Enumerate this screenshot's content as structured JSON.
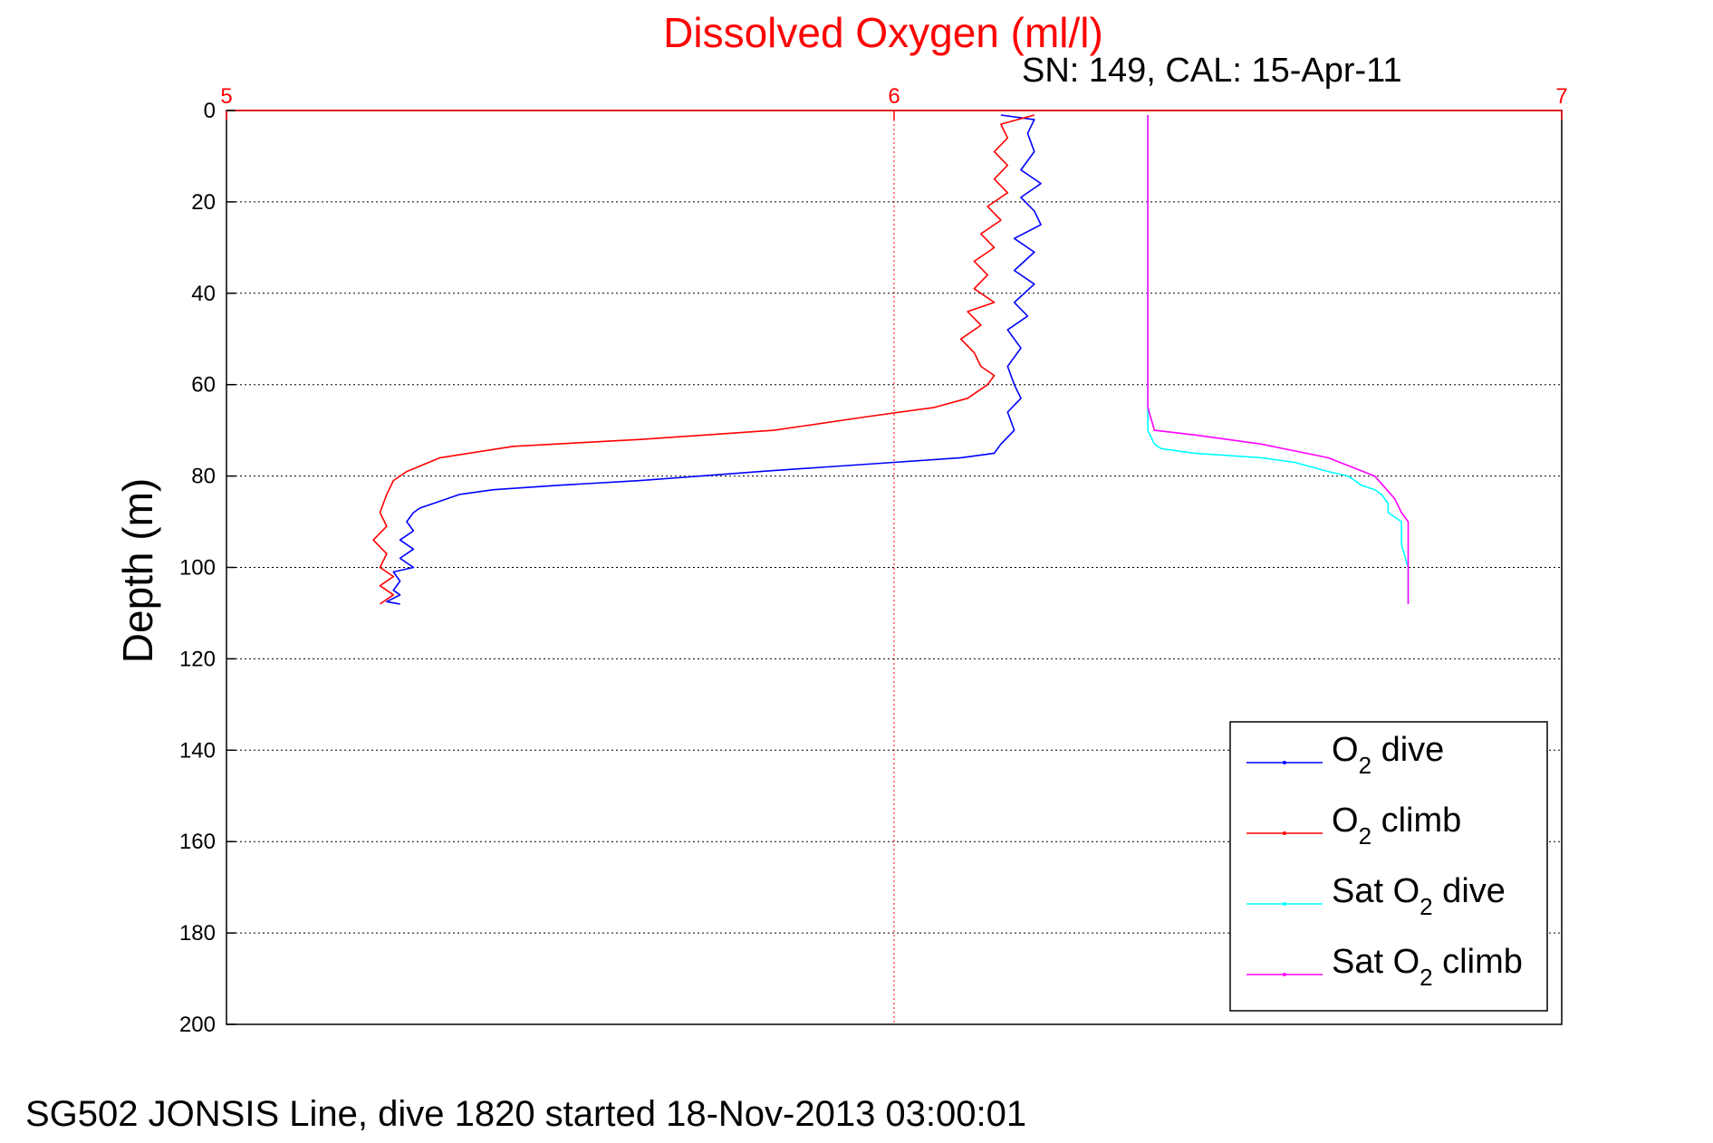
{
  "chart_data": {
    "type": "line",
    "title": "Dissolved Oxygen (ml/l)",
    "subtitle": "SN: 149, CAL: 15-Apr-11",
    "ylabel": "Depth (m)",
    "xlim": [
      5,
      7
    ],
    "ylim": [
      0,
      200
    ],
    "y_reversed": true,
    "x_ticks": [
      "5",
      "6",
      "7"
    ],
    "y_ticks": [
      "0",
      "20",
      "40",
      "60",
      "80",
      "100",
      "120",
      "140",
      "160",
      "180",
      "200"
    ],
    "grid": true,
    "legend_position": "bottom-right",
    "colors": {
      "title": "#ff0000",
      "x_axis": "#ff0000",
      "grid_x": "#ff0000",
      "grid_y": "#000000"
    },
    "series": [
      {
        "name": "O2 dive",
        "legend_main": "O",
        "legend_sub": "2",
        "legend_tail": " dive",
        "color": "#0000ff",
        "points": [
          [
            6.16,
            1
          ],
          [
            6.21,
            2
          ],
          [
            6.2,
            5
          ],
          [
            6.21,
            9
          ],
          [
            6.19,
            13
          ],
          [
            6.22,
            16
          ],
          [
            6.19,
            19
          ],
          [
            6.21,
            22
          ],
          [
            6.22,
            25
          ],
          [
            6.18,
            28
          ],
          [
            6.21,
            31
          ],
          [
            6.18,
            35
          ],
          [
            6.21,
            38
          ],
          [
            6.18,
            42
          ],
          [
            6.2,
            45
          ],
          [
            6.17,
            48
          ],
          [
            6.19,
            52
          ],
          [
            6.17,
            56
          ],
          [
            6.18,
            60
          ],
          [
            6.19,
            63
          ],
          [
            6.17,
            66
          ],
          [
            6.18,
            70
          ],
          [
            6.16,
            73
          ],
          [
            6.15,
            75
          ],
          [
            6.1,
            76
          ],
          [
            6.0,
            77
          ],
          [
            5.9,
            78
          ],
          [
            5.8,
            79
          ],
          [
            5.62,
            81
          ],
          [
            5.5,
            82
          ],
          [
            5.4,
            83
          ],
          [
            5.35,
            84
          ],
          [
            5.33,
            85
          ],
          [
            5.31,
            86
          ],
          [
            5.29,
            87
          ],
          [
            5.28,
            88
          ],
          [
            5.27,
            90
          ],
          [
            5.28,
            92
          ],
          [
            5.26,
            94
          ],
          [
            5.28,
            96
          ],
          [
            5.26,
            98
          ],
          [
            5.28,
            100
          ],
          [
            5.25,
            101
          ],
          [
            5.26,
            103
          ],
          [
            5.25,
            105
          ],
          [
            5.26,
            106
          ],
          [
            5.24,
            107.5
          ],
          [
            5.26,
            108
          ]
        ]
      },
      {
        "name": "O2 climb",
        "legend_main": "O",
        "legend_sub": "2",
        "legend_tail": " climb",
        "color": "#ff0000",
        "points": [
          [
            5.23,
            108
          ],
          [
            5.25,
            106
          ],
          [
            5.23,
            104
          ],
          [
            5.25,
            102
          ],
          [
            5.23,
            100
          ],
          [
            5.24,
            97
          ],
          [
            5.22,
            94
          ],
          [
            5.24,
            91
          ],
          [
            5.23,
            88
          ],
          [
            5.24,
            84
          ],
          [
            5.25,
            81
          ],
          [
            5.27,
            79
          ],
          [
            5.32,
            76
          ],
          [
            5.43,
            73.5
          ],
          [
            5.62,
            72
          ],
          [
            5.82,
            70
          ],
          [
            5.96,
            67
          ],
          [
            6.06,
            65
          ],
          [
            6.11,
            63
          ],
          [
            6.14,
            60
          ],
          [
            6.15,
            58
          ],
          [
            6.13,
            56
          ],
          [
            6.12,
            53
          ],
          [
            6.1,
            50
          ],
          [
            6.13,
            47
          ],
          [
            6.11,
            44
          ],
          [
            6.15,
            42
          ],
          [
            6.12,
            39
          ],
          [
            6.14,
            36
          ],
          [
            6.12,
            33
          ],
          [
            6.15,
            30
          ],
          [
            6.13,
            27
          ],
          [
            6.16,
            24
          ],
          [
            6.14,
            21
          ],
          [
            6.17,
            18
          ],
          [
            6.15,
            15
          ],
          [
            6.17,
            12
          ],
          [
            6.15,
            9
          ],
          [
            6.17,
            6
          ],
          [
            6.16,
            3
          ],
          [
            6.21,
            1
          ]
        ]
      },
      {
        "name": "Sat O2 dive",
        "legend_main": "Sat O",
        "legend_sub": "2",
        "legend_tail": " dive",
        "color": "#00ffff",
        "points": [
          [
            6.38,
            1
          ],
          [
            6.38,
            10
          ],
          [
            6.38,
            20
          ],
          [
            6.38,
            30
          ],
          [
            6.38,
            40
          ],
          [
            6.38,
            50
          ],
          [
            6.38,
            60
          ],
          [
            6.38,
            65
          ],
          [
            6.38,
            70
          ],
          [
            6.39,
            73
          ],
          [
            6.4,
            74
          ],
          [
            6.45,
            75
          ],
          [
            6.55,
            76
          ],
          [
            6.6,
            77
          ],
          [
            6.65,
            79
          ],
          [
            6.68,
            80
          ],
          [
            6.7,
            82
          ],
          [
            6.72,
            83
          ],
          [
            6.73,
            84
          ],
          [
            6.74,
            86
          ],
          [
            6.74,
            88
          ],
          [
            6.76,
            90
          ],
          [
            6.76,
            95
          ],
          [
            6.77,
            100
          ],
          [
            6.77,
            105
          ],
          [
            6.77,
            108
          ]
        ]
      },
      {
        "name": "Sat O2 climb",
        "legend_main": "Sat O",
        "legend_sub": "2",
        "legend_tail": " climb",
        "color": "#ff00ff",
        "points": [
          [
            6.77,
            108
          ],
          [
            6.77,
            105
          ],
          [
            6.77,
            100
          ],
          [
            6.77,
            95
          ],
          [
            6.77,
            90
          ],
          [
            6.76,
            88
          ],
          [
            6.75,
            85
          ],
          [
            6.72,
            80
          ],
          [
            6.65,
            76
          ],
          [
            6.55,
            73
          ],
          [
            6.45,
            71
          ],
          [
            6.39,
            70
          ],
          [
            6.38,
            65
          ],
          [
            6.38,
            60
          ],
          [
            6.38,
            50
          ],
          [
            6.38,
            40
          ],
          [
            6.38,
            30
          ],
          [
            6.38,
            20
          ],
          [
            6.38,
            10
          ],
          [
            6.38,
            1
          ]
        ]
      }
    ]
  },
  "footer": "SG502 JONSIS Line, dive 1820 started 18-Nov-2013 03:00:01"
}
